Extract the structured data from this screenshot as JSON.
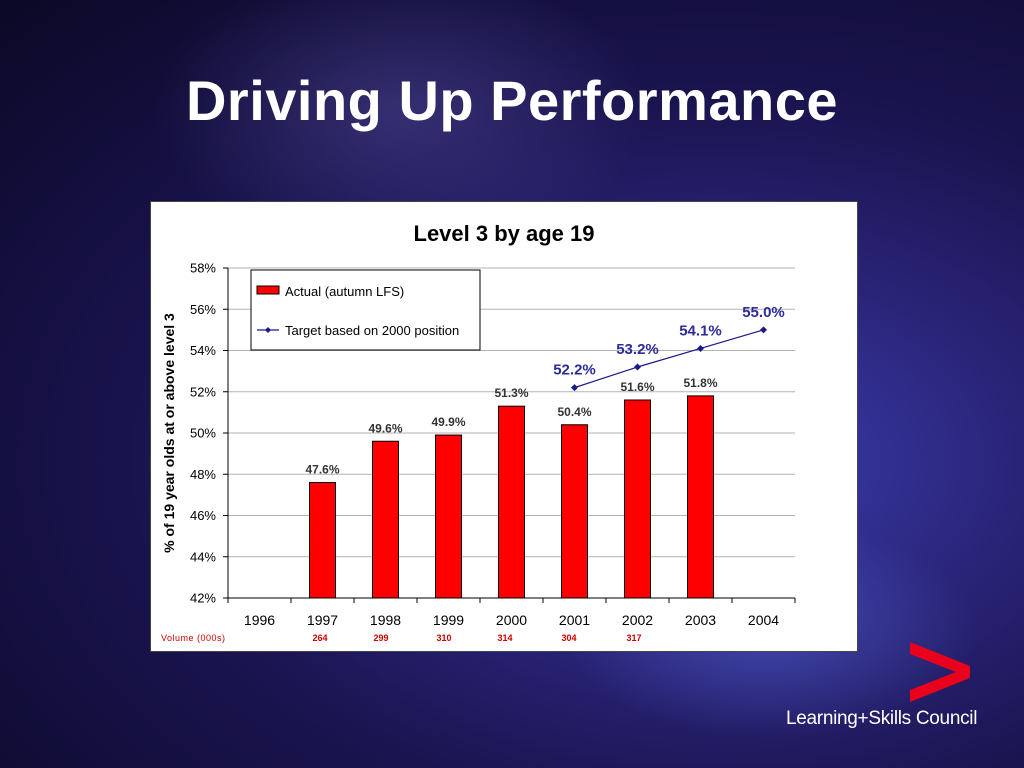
{
  "slide": {
    "title": "Driving Up Performance"
  },
  "logo": {
    "text": "Learning+Skills Council",
    "icon": "chevron-right-icon",
    "color": "#e8001c"
  },
  "chart_data": {
    "type": "bar",
    "title": "Level 3 by age 19",
    "ylabel": "% of 19 year olds at or above level 3",
    "xlabel": "",
    "ylim": [
      42,
      58
    ],
    "yticks": [
      42,
      44,
      46,
      48,
      50,
      52,
      54,
      56,
      58
    ],
    "ytick_labels": [
      "42%",
      "44%",
      "46%",
      "48%",
      "50%",
      "52%",
      "54%",
      "56%",
      "58%"
    ],
    "categories": [
      "1996",
      "1997",
      "1998",
      "1999",
      "2000",
      "2001",
      "2002",
      "2003",
      "2004"
    ],
    "grid": true,
    "legend_position": "top-left",
    "series": [
      {
        "name": "Actual (autumn LFS)",
        "kind": "bar",
        "color": "#ff0000",
        "values": [
          null,
          47.6,
          49.6,
          49.9,
          51.3,
          50.4,
          51.6,
          51.8,
          null
        ],
        "labels": [
          "",
          "47.6%",
          "49.6%",
          "49.9%",
          "51.3%",
          "50.4%",
          "51.6%",
          "51.8%",
          ""
        ]
      },
      {
        "name": "Target based on 2000 position",
        "kind": "line",
        "color": "#1a1a8c",
        "values": [
          null,
          null,
          null,
          null,
          null,
          52.2,
          53.2,
          54.1,
          55.0
        ],
        "labels": [
          "",
          "",
          "",
          "",
          "",
          "52.2%",
          "53.2%",
          "54.1%",
          "55.0%"
        ]
      }
    ],
    "volume": {
      "label": "Volume (000s)",
      "color": "#cc0000",
      "values": [
        "",
        "264",
        "299",
        "310",
        "314",
        "304",
        "317",
        "",
        ""
      ]
    }
  }
}
